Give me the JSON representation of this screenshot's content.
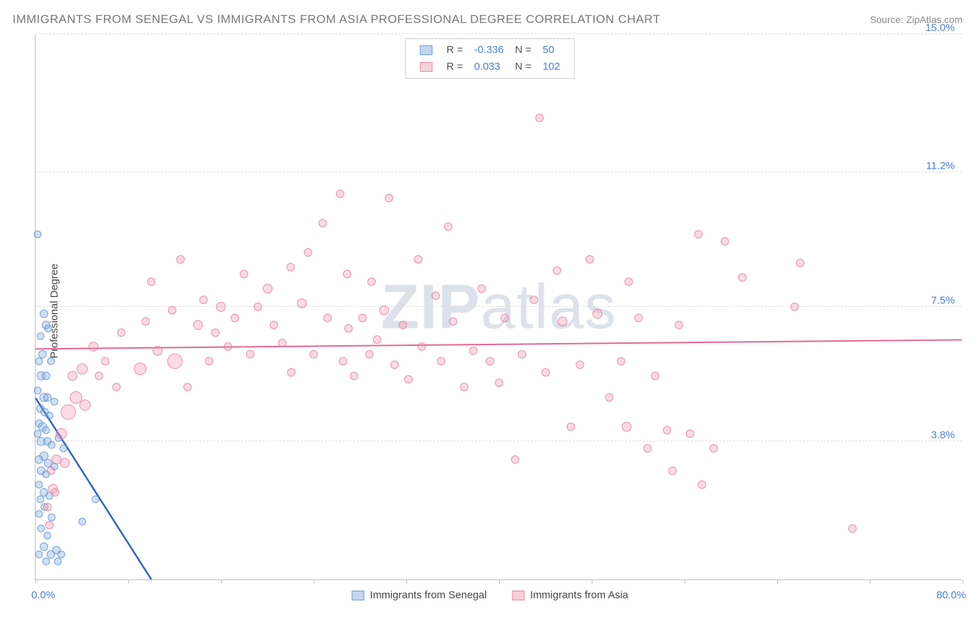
{
  "title": "IMMIGRANTS FROM SENEGAL VS IMMIGRANTS FROM ASIA PROFESSIONAL DEGREE CORRELATION CHART",
  "source": "Source: ZipAtlas.com",
  "watermark": "ZIPatlas",
  "ylabel": "Professional Degree",
  "chart": {
    "type": "scatter",
    "background_color": "#ffffff",
    "grid_color": "#dddddd",
    "axis_color": "#c0c0c0",
    "tick_label_color": "#4a7fd6",
    "tick_fontsize": 15,
    "xlim": [
      0,
      80
    ],
    "ylim": [
      0,
      15
    ],
    "x_min_label": "0.0%",
    "x_max_label": "80.0%",
    "x_tick_positions": [
      0,
      8,
      16,
      24,
      32,
      40,
      48,
      56,
      64,
      72,
      80
    ],
    "y_gridlines": [
      {
        "value": 3.8,
        "label": "3.8%"
      },
      {
        "value": 7.5,
        "label": "7.5%"
      },
      {
        "value": 11.2,
        "label": "11.2%"
      },
      {
        "value": 15.0,
        "label": "15.0%"
      }
    ],
    "marker_base_size": 14
  },
  "legend_top": {
    "rows": [
      {
        "swatch": "blue",
        "r_label": "R =",
        "r_value": "-0.336",
        "n_label": "N =",
        "n_value": "50"
      },
      {
        "swatch": "pink",
        "r_label": "R =",
        "r_value": "0.033",
        "n_label": "N =",
        "n_value": "102"
      }
    ]
  },
  "legend_bottom": {
    "items": [
      {
        "swatch": "blue",
        "label": "Immigrants from Senegal"
      },
      {
        "swatch": "pink",
        "label": "Immigrants from Asia"
      }
    ]
  },
  "series": [
    {
      "name": "Immigrants from Senegal",
      "color_fill": "rgba(120,165,220,0.35)",
      "color_stroke": "rgba(90,140,210,0.75)",
      "class": "pt-blue",
      "trend": {
        "x0": 0,
        "y0": 5.0,
        "x1": 10,
        "y1": 0,
        "dash_extend_x": 12,
        "color": "#2e62c8",
        "width": 2.5
      },
      "points": [
        {
          "x": 0.2,
          "y": 9.5,
          "s": 11
        },
        {
          "x": 0.7,
          "y": 7.3,
          "s": 12
        },
        {
          "x": 0.9,
          "y": 7.0,
          "s": 12
        },
        {
          "x": 0.4,
          "y": 6.7,
          "s": 11
        },
        {
          "x": 1.1,
          "y": 6.9,
          "s": 11
        },
        {
          "x": 0.6,
          "y": 6.2,
          "s": 12
        },
        {
          "x": 0.3,
          "y": 6.0,
          "s": 11
        },
        {
          "x": 0.5,
          "y": 5.6,
          "s": 13
        },
        {
          "x": 0.9,
          "y": 5.6,
          "s": 12
        },
        {
          "x": 1.3,
          "y": 6.0,
          "s": 11
        },
        {
          "x": 0.2,
          "y": 5.2,
          "s": 11
        },
        {
          "x": 0.7,
          "y": 5.0,
          "s": 13
        },
        {
          "x": 1.0,
          "y": 5.0,
          "s": 12
        },
        {
          "x": 0.4,
          "y": 4.7,
          "s": 12
        },
        {
          "x": 0.8,
          "y": 4.6,
          "s": 12
        },
        {
          "x": 1.2,
          "y": 4.5,
          "s": 11
        },
        {
          "x": 1.6,
          "y": 4.9,
          "s": 11
        },
        {
          "x": 0.3,
          "y": 4.3,
          "s": 11
        },
        {
          "x": 0.6,
          "y": 4.2,
          "s": 13
        },
        {
          "x": 0.9,
          "y": 4.1,
          "s": 11
        },
        {
          "x": 0.2,
          "y": 4.0,
          "s": 11
        },
        {
          "x": 0.5,
          "y": 3.8,
          "s": 13
        },
        {
          "x": 1.0,
          "y": 3.8,
          "s": 12
        },
        {
          "x": 1.4,
          "y": 3.7,
          "s": 11
        },
        {
          "x": 2.0,
          "y": 3.9,
          "s": 11
        },
        {
          "x": 2.4,
          "y": 3.6,
          "s": 11
        },
        {
          "x": 0.7,
          "y": 3.4,
          "s": 13
        },
        {
          "x": 0.3,
          "y": 3.3,
          "s": 12
        },
        {
          "x": 1.1,
          "y": 3.2,
          "s": 12
        },
        {
          "x": 0.5,
          "y": 3.0,
          "s": 12
        },
        {
          "x": 0.9,
          "y": 2.9,
          "s": 11
        },
        {
          "x": 1.6,
          "y": 3.1,
          "s": 11
        },
        {
          "x": 0.3,
          "y": 2.6,
          "s": 11
        },
        {
          "x": 0.7,
          "y": 2.4,
          "s": 12
        },
        {
          "x": 1.2,
          "y": 2.3,
          "s": 11
        },
        {
          "x": 0.4,
          "y": 2.2,
          "s": 11
        },
        {
          "x": 0.8,
          "y": 2.0,
          "s": 11
        },
        {
          "x": 0.3,
          "y": 1.8,
          "s": 11
        },
        {
          "x": 1.4,
          "y": 1.7,
          "s": 11
        },
        {
          "x": 4.0,
          "y": 1.6,
          "s": 11
        },
        {
          "x": 5.2,
          "y": 2.2,
          "s": 11
        },
        {
          "x": 0.5,
          "y": 1.4,
          "s": 11
        },
        {
          "x": 1.0,
          "y": 1.2,
          "s": 11
        },
        {
          "x": 0.7,
          "y": 0.9,
          "s": 12
        },
        {
          "x": 1.8,
          "y": 0.8,
          "s": 12
        },
        {
          "x": 0.3,
          "y": 0.7,
          "s": 11
        },
        {
          "x": 1.3,
          "y": 0.7,
          "s": 12
        },
        {
          "x": 2.2,
          "y": 0.7,
          "s": 11
        },
        {
          "x": 0.9,
          "y": 0.5,
          "s": 11
        },
        {
          "x": 1.9,
          "y": 0.5,
          "s": 11
        }
      ]
    },
    {
      "name": "Immigrants from Asia",
      "color_fill": "rgba(240,150,175,0.35)",
      "color_stroke": "rgba(225,120,150,0.75)",
      "class": "pt-pink",
      "trend": {
        "x0": 0,
        "y0": 6.35,
        "x1": 80,
        "y1": 6.6,
        "color": "#e56590",
        "width": 2
      },
      "points": [
        {
          "x": 1.5,
          "y": 2.5,
          "s": 14
        },
        {
          "x": 1.8,
          "y": 3.3,
          "s": 14
        },
        {
          "x": 2.2,
          "y": 4.0,
          "s": 16
        },
        {
          "x": 2.5,
          "y": 3.2,
          "s": 14
        },
        {
          "x": 2.8,
          "y": 4.6,
          "s": 22
        },
        {
          "x": 3.2,
          "y": 5.6,
          "s": 14
        },
        {
          "x": 3.5,
          "y": 5.0,
          "s": 18
        },
        {
          "x": 4.0,
          "y": 5.8,
          "s": 16
        },
        {
          "x": 4.3,
          "y": 4.8,
          "s": 16
        },
        {
          "x": 5.0,
          "y": 6.4,
          "s": 14
        },
        {
          "x": 5.5,
          "y": 5.6,
          "s": 12
        },
        {
          "x": 6.0,
          "y": 6.0,
          "s": 12
        },
        {
          "x": 7.0,
          "y": 5.3,
          "s": 12
        },
        {
          "x": 7.4,
          "y": 6.8,
          "s": 12
        },
        {
          "x": 9.0,
          "y": 5.8,
          "s": 18
        },
        {
          "x": 9.5,
          "y": 7.1,
          "s": 12
        },
        {
          "x": 10.0,
          "y": 8.2,
          "s": 12
        },
        {
          "x": 10.5,
          "y": 6.3,
          "s": 14
        },
        {
          "x": 11.8,
          "y": 7.4,
          "s": 12
        },
        {
          "x": 12.0,
          "y": 6.0,
          "s": 22
        },
        {
          "x": 12.5,
          "y": 8.8,
          "s": 12
        },
        {
          "x": 13.1,
          "y": 5.3,
          "s": 12
        },
        {
          "x": 14.0,
          "y": 7.0,
          "s": 14
        },
        {
          "x": 14.5,
          "y": 7.7,
          "s": 12
        },
        {
          "x": 15.0,
          "y": 6.0,
          "s": 12
        },
        {
          "x": 15.5,
          "y": 6.8,
          "s": 12
        },
        {
          "x": 16.0,
          "y": 7.5,
          "s": 14
        },
        {
          "x": 16.6,
          "y": 6.4,
          "s": 12
        },
        {
          "x": 17.2,
          "y": 7.2,
          "s": 12
        },
        {
          "x": 18.0,
          "y": 8.4,
          "s": 12
        },
        {
          "x": 18.5,
          "y": 6.2,
          "s": 12
        },
        {
          "x": 19.2,
          "y": 7.5,
          "s": 12
        },
        {
          "x": 20.0,
          "y": 8.0,
          "s": 14
        },
        {
          "x": 20.6,
          "y": 7.0,
          "s": 12
        },
        {
          "x": 21.3,
          "y": 6.5,
          "s": 12
        },
        {
          "x": 22.0,
          "y": 8.6,
          "s": 12
        },
        {
          "x": 22.1,
          "y": 5.7,
          "s": 12
        },
        {
          "x": 23.0,
          "y": 7.6,
          "s": 14
        },
        {
          "x": 23.5,
          "y": 9.0,
          "s": 12
        },
        {
          "x": 24.0,
          "y": 6.2,
          "s": 12
        },
        {
          "x": 24.8,
          "y": 9.8,
          "s": 12
        },
        {
          "x": 25.2,
          "y": 7.2,
          "s": 12
        },
        {
          "x": 26.3,
          "y": 10.6,
          "s": 12
        },
        {
          "x": 26.5,
          "y": 6.0,
          "s": 12
        },
        {
          "x": 26.9,
          "y": 8.4,
          "s": 12
        },
        {
          "x": 27.0,
          "y": 6.9,
          "s": 12
        },
        {
          "x": 27.5,
          "y": 5.6,
          "s": 12
        },
        {
          "x": 28.2,
          "y": 7.2,
          "s": 12
        },
        {
          "x": 28.8,
          "y": 6.2,
          "s": 12
        },
        {
          "x": 29.0,
          "y": 8.2,
          "s": 12
        },
        {
          "x": 29.5,
          "y": 6.6,
          "s": 12
        },
        {
          "x": 30.1,
          "y": 7.4,
          "s": 14
        },
        {
          "x": 30.5,
          "y": 10.5,
          "s": 12
        },
        {
          "x": 31.0,
          "y": 5.9,
          "s": 12
        },
        {
          "x": 31.7,
          "y": 7.0,
          "s": 12
        },
        {
          "x": 32.2,
          "y": 5.5,
          "s": 12
        },
        {
          "x": 33.0,
          "y": 8.8,
          "s": 12
        },
        {
          "x": 33.3,
          "y": 6.4,
          "s": 12
        },
        {
          "x": 34.5,
          "y": 7.8,
          "s": 12
        },
        {
          "x": 35.0,
          "y": 6.0,
          "s": 12
        },
        {
          "x": 35.6,
          "y": 9.7,
          "s": 12
        },
        {
          "x": 36.0,
          "y": 7.1,
          "s": 12
        },
        {
          "x": 37.0,
          "y": 5.3,
          "s": 12
        },
        {
          "x": 37.8,
          "y": 6.3,
          "s": 12
        },
        {
          "x": 38.5,
          "y": 8.0,
          "s": 12
        },
        {
          "x": 39.2,
          "y": 6.0,
          "s": 12
        },
        {
          "x": 40.0,
          "y": 5.4,
          "s": 12
        },
        {
          "x": 40.5,
          "y": 7.2,
          "s": 12
        },
        {
          "x": 41.4,
          "y": 3.3,
          "s": 12
        },
        {
          "x": 42.0,
          "y": 6.2,
          "s": 12
        },
        {
          "x": 43.0,
          "y": 7.7,
          "s": 12
        },
        {
          "x": 43.5,
          "y": 12.7,
          "s": 12
        },
        {
          "x": 44.0,
          "y": 5.7,
          "s": 12
        },
        {
          "x": 45.0,
          "y": 8.5,
          "s": 12
        },
        {
          "x": 45.5,
          "y": 7.1,
          "s": 14
        },
        {
          "x": 46.2,
          "y": 4.2,
          "s": 12
        },
        {
          "x": 47.0,
          "y": 5.9,
          "s": 12
        },
        {
          "x": 47.8,
          "y": 8.8,
          "s": 12
        },
        {
          "x": 48.5,
          "y": 7.3,
          "s": 14
        },
        {
          "x": 49.5,
          "y": 5.0,
          "s": 12
        },
        {
          "x": 50.5,
          "y": 6.0,
          "s": 12
        },
        {
          "x": 51.0,
          "y": 4.2,
          "s": 14
        },
        {
          "x": 51.2,
          "y": 8.2,
          "s": 12
        },
        {
          "x": 52.0,
          "y": 7.2,
          "s": 12
        },
        {
          "x": 52.8,
          "y": 3.6,
          "s": 12
        },
        {
          "x": 53.5,
          "y": 5.6,
          "s": 12
        },
        {
          "x": 54.5,
          "y": 4.1,
          "s": 12
        },
        {
          "x": 55.0,
          "y": 3.0,
          "s": 12
        },
        {
          "x": 55.5,
          "y": 7.0,
          "s": 12
        },
        {
          "x": 56.5,
          "y": 4.0,
          "s": 12
        },
        {
          "x": 57.2,
          "y": 9.5,
          "s": 12
        },
        {
          "x": 57.5,
          "y": 2.6,
          "s": 12
        },
        {
          "x": 58.5,
          "y": 3.6,
          "s": 12
        },
        {
          "x": 59.5,
          "y": 9.3,
          "s": 12
        },
        {
          "x": 61.0,
          "y": 8.3,
          "s": 12
        },
        {
          "x": 65.5,
          "y": 7.5,
          "s": 12
        },
        {
          "x": 66.0,
          "y": 8.7,
          "s": 12
        },
        {
          "x": 70.5,
          "y": 1.4,
          "s": 12
        },
        {
          "x": 1.0,
          "y": 2.0,
          "s": 12
        },
        {
          "x": 1.2,
          "y": 1.5,
          "s": 12
        },
        {
          "x": 1.3,
          "y": 3.0,
          "s": 12
        },
        {
          "x": 1.7,
          "y": 2.4,
          "s": 12
        }
      ]
    }
  ]
}
